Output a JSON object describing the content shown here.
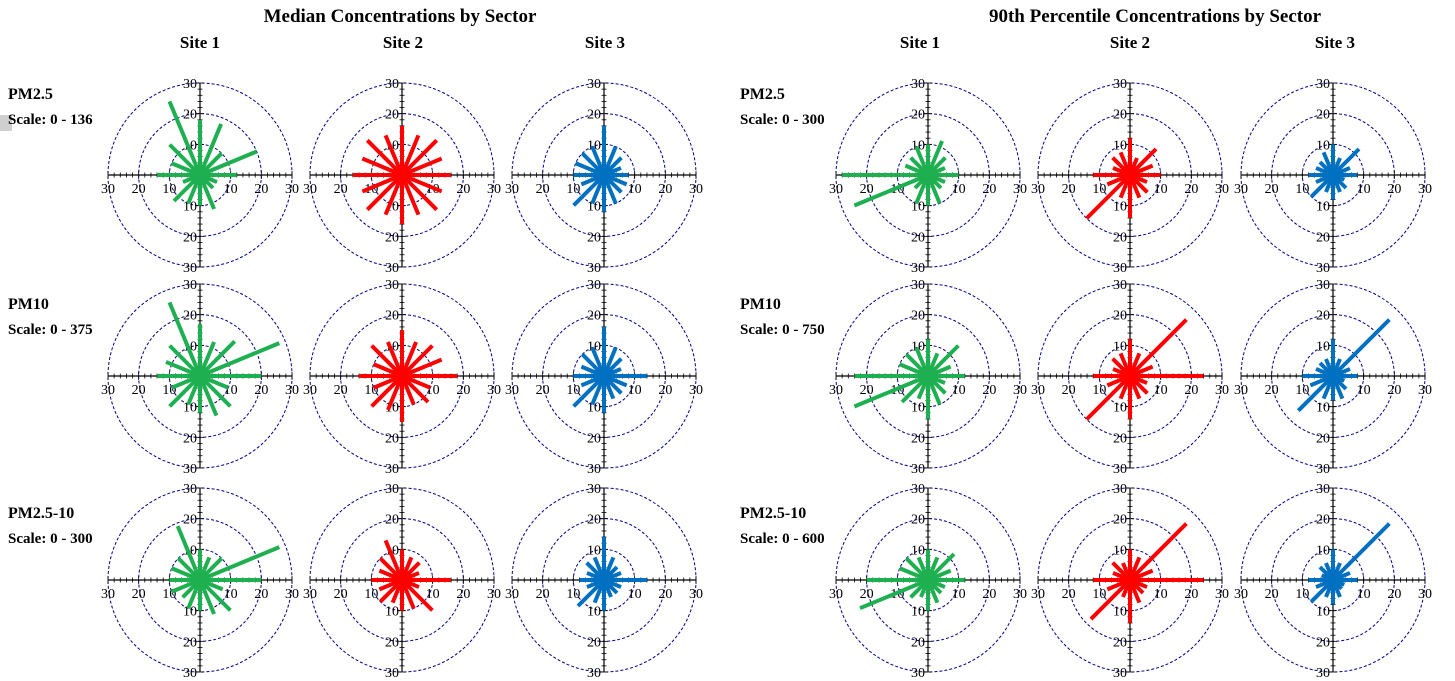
{
  "panels": [
    {
      "title": "Median Concentrations by Sector",
      "sites": [
        "Site 1",
        "Site 2",
        "Site 3"
      ],
      "rows": [
        {
          "pollutant": "PM2.5",
          "scale": "Scale: 0 - 136"
        },
        {
          "pollutant": "PM10",
          "scale": "Scale: 0 - 375"
        },
        {
          "pollutant": "PM2.5-10",
          "scale": "Scale: 0 - 300"
        }
      ]
    },
    {
      "title": "90th Percentile Concentrations by Sector",
      "sites": [
        "Site 1",
        "Site 2",
        "Site 3"
      ],
      "rows": [
        {
          "pollutant": "PM2.5",
          "scale": "Scale: 0 - 300"
        },
        {
          "pollutant": "PM10",
          "scale": "Scale: 0 - 750"
        },
        {
          "pollutant": "PM2.5-10",
          "scale": "Scale: 0 - 600"
        }
      ]
    }
  ],
  "colors": {
    "site1": "#1eb050",
    "site2": "#ff0000",
    "site3": "#0070c0",
    "ring": "#00008b",
    "axis": "#000000"
  },
  "chart_data": {
    "type": "polar-bar",
    "rmax": 30,
    "ring_values": [
      10,
      20,
      30
    ],
    "tick_labels": [
      "10",
      "20",
      "30"
    ],
    "sectors_deg": [
      0,
      22.5,
      45,
      67.5,
      90,
      112.5,
      135,
      157.5,
      180,
      202.5,
      225,
      247.5,
      270,
      292.5,
      315,
      337.5
    ],
    "roses": [
      {
        "panel": 0,
        "row": 0,
        "site": 0,
        "values": [
          18,
          18,
          10,
          20,
          12,
          6,
          6,
          12,
          10,
          10,
          12,
          6,
          14,
          10,
          14,
          26
        ]
      },
      {
        "panel": 0,
        "row": 0,
        "site": 1,
        "values": [
          16,
          14,
          16,
          14,
          16,
          14,
          16,
          14,
          16,
          14,
          16,
          14,
          16,
          14,
          16,
          14
        ]
      },
      {
        "panel": 0,
        "row": 0,
        "site": 2,
        "values": [
          16,
          10,
          8,
          6,
          8,
          8,
          8,
          10,
          12,
          10,
          14,
          8,
          10,
          10,
          10,
          10
        ]
      },
      {
        "panel": 0,
        "row": 1,
        "site": 0,
        "values": [
          17,
          12,
          16,
          28,
          20,
          10,
          14,
          14,
          12,
          10,
          14,
          10,
          14,
          12,
          14,
          26
        ]
      },
      {
        "panel": 0,
        "row": 1,
        "site": 1,
        "values": [
          15,
          12,
          14,
          14,
          18,
          10,
          12,
          10,
          15,
          12,
          14,
          10,
          14,
          10,
          14,
          12
        ]
      },
      {
        "panel": 0,
        "row": 1,
        "site": 2,
        "values": [
          16,
          10,
          8,
          6,
          14,
          8,
          8,
          8,
          12,
          10,
          14,
          8,
          10,
          8,
          10,
          10
        ]
      },
      {
        "panel": 0,
        "row": 2,
        "site": 0,
        "values": [
          10,
          8,
          10,
          28,
          20,
          8,
          14,
          12,
          10,
          10,
          8,
          10,
          10,
          10,
          10,
          19
        ]
      },
      {
        "panel": 0,
        "row": 2,
        "site": 1,
        "values": [
          10,
          8,
          8,
          6,
          16,
          6,
          14,
          10,
          10,
          8,
          10,
          8,
          10,
          8,
          10,
          14
        ]
      },
      {
        "panel": 0,
        "row": 2,
        "site": 2,
        "values": [
          14,
          8,
          6,
          6,
          14,
          6,
          6,
          6,
          10,
          8,
          12,
          6,
          8,
          6,
          8,
          8
        ]
      },
      {
        "panel": 1,
        "row": 0,
        "site": 0,
        "values": [
          10,
          12,
          8,
          6,
          10,
          6,
          6,
          10,
          10,
          10,
          6,
          26,
          28,
          8,
          8,
          10
        ]
      },
      {
        "panel": 1,
        "row": 0,
        "site": 1,
        "values": [
          12,
          6,
          12,
          8,
          10,
          6,
          8,
          8,
          14,
          8,
          20,
          8,
          12,
          6,
          8,
          8
        ]
      },
      {
        "panel": 1,
        "row": 0,
        "site": 2,
        "values": [
          10,
          6,
          12,
          6,
          8,
          4,
          6,
          6,
          8,
          6,
          10,
          6,
          8,
          6,
          6,
          8
        ]
      },
      {
        "panel": 1,
        "row": 1,
        "site": 0,
        "values": [
          12,
          8,
          14,
          8,
          12,
          6,
          8,
          10,
          14,
          8,
          12,
          26,
          24,
          10,
          10,
          10
        ]
      },
      {
        "panel": 1,
        "row": 1,
        "site": 1,
        "values": [
          12,
          8,
          26,
          8,
          24,
          6,
          8,
          8,
          14,
          8,
          20,
          8,
          12,
          6,
          8,
          8
        ]
      },
      {
        "panel": 1,
        "row": 1,
        "site": 2,
        "values": [
          12,
          6,
          26,
          6,
          8,
          4,
          6,
          8,
          8,
          8,
          16,
          8,
          10,
          6,
          6,
          6
        ]
      },
      {
        "panel": 1,
        "row": 2,
        "site": 0,
        "values": [
          10,
          8,
          12,
          8,
          12,
          6,
          6,
          8,
          10,
          6,
          8,
          24,
          20,
          10,
          10,
          8
        ]
      },
      {
        "panel": 1,
        "row": 2,
        "site": 1,
        "values": [
          10,
          8,
          26,
          8,
          24,
          6,
          6,
          8,
          14,
          6,
          18,
          8,
          12,
          6,
          8,
          6
        ]
      },
      {
        "panel": 1,
        "row": 2,
        "site": 2,
        "values": [
          10,
          6,
          26,
          6,
          8,
          4,
          4,
          6,
          8,
          6,
          10,
          6,
          8,
          4,
          6,
          6
        ]
      }
    ]
  }
}
